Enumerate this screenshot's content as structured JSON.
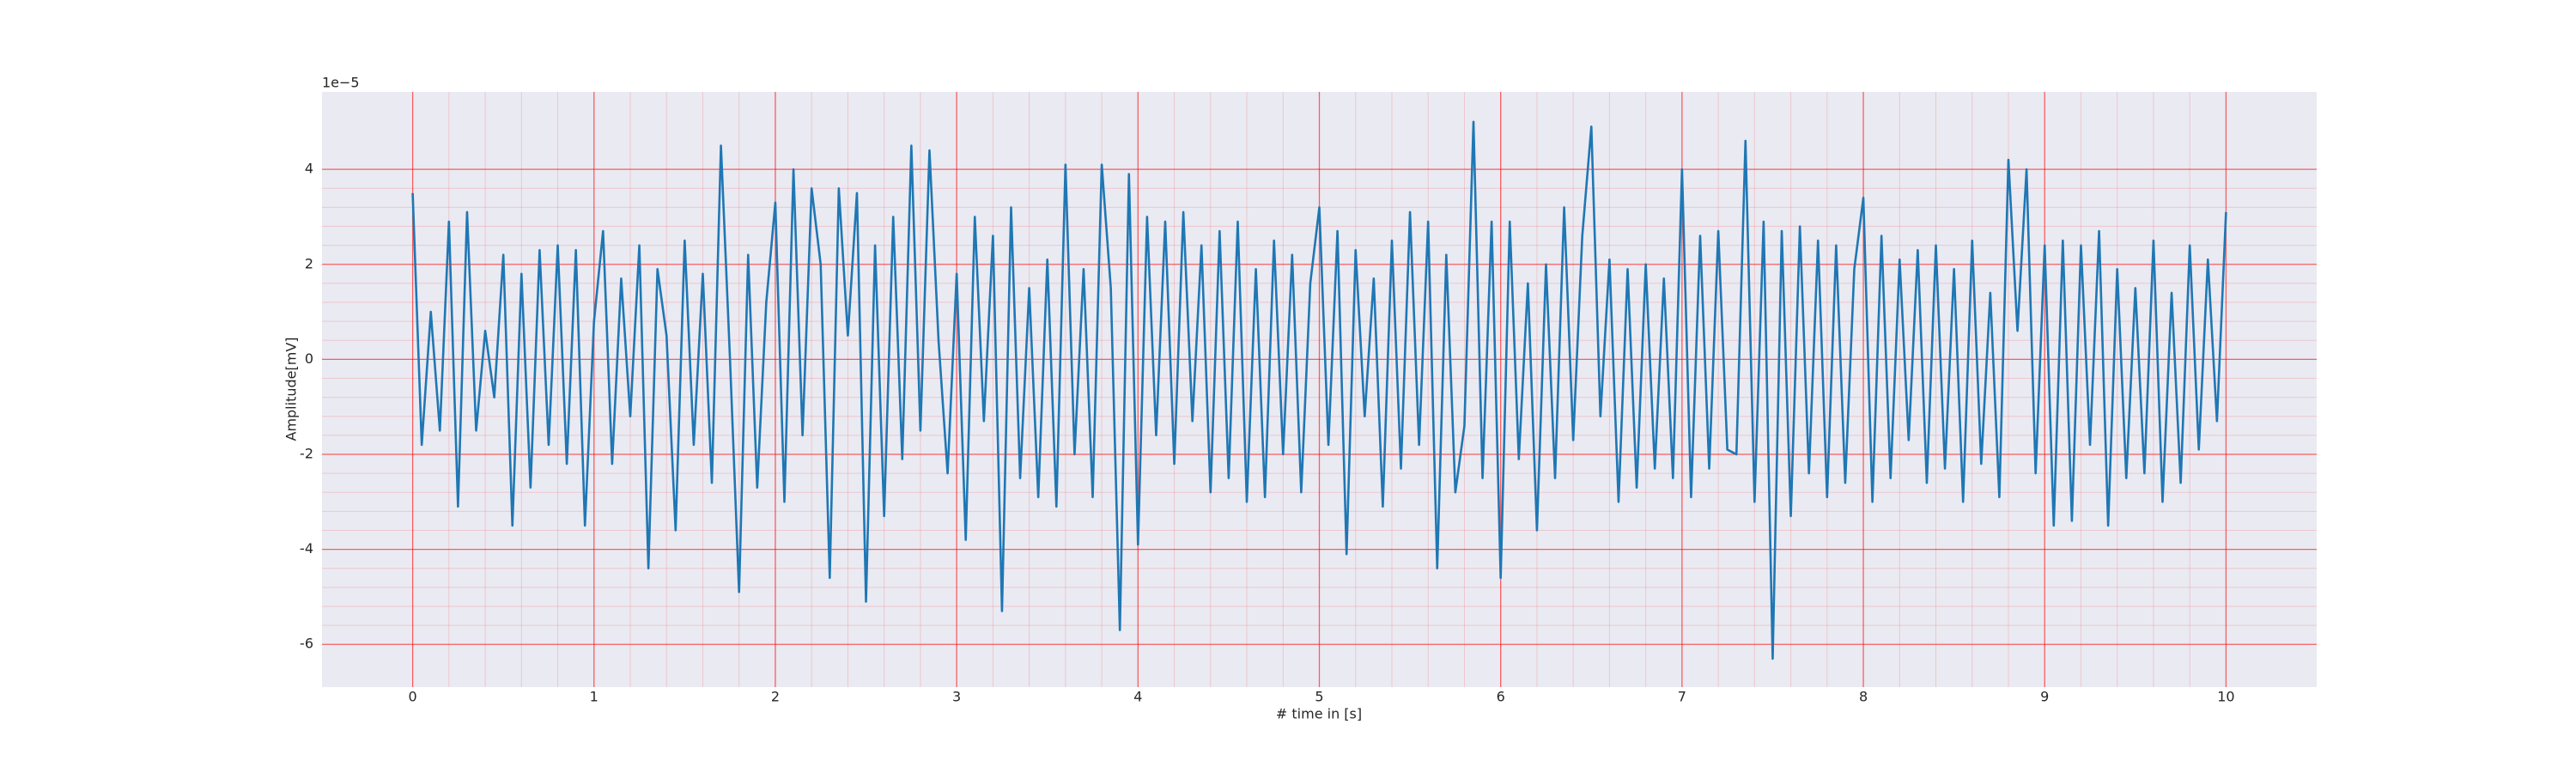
{
  "chart_data": {
    "type": "line",
    "xlabel": "# time in [s]",
    "ylabel": "Amplitude[mV]",
    "y_offset_label": "1e−5",
    "xlim": [
      -0.5,
      10.5
    ],
    "ylim": [
      -6.9,
      5.63
    ],
    "xticks": [
      0,
      1,
      2,
      3,
      4,
      5,
      6,
      7,
      8,
      9,
      10
    ],
    "yticks": [
      -6,
      -4,
      -2,
      0,
      2,
      4
    ],
    "grid": true,
    "minor_grid": true,
    "grid_color": "#ff0000",
    "background": "#eaeaf2",
    "x": [
      0,
      0.05,
      0.1,
      0.15,
      0.2,
      0.25,
      0.3,
      0.35,
      0.4,
      0.45,
      0.5,
      0.55,
      0.6,
      0.65,
      0.7,
      0.75,
      0.8,
      0.85,
      0.9,
      0.95,
      1,
      1.05,
      1.1,
      1.15,
      1.2,
      1.25,
      1.3,
      1.35,
      1.4,
      1.45,
      1.5,
      1.55,
      1.6,
      1.65,
      1.7,
      1.75,
      1.8,
      1.85,
      1.9,
      1.95,
      2,
      2.05,
      2.1,
      2.15,
      2.2,
      2.25,
      2.3,
      2.35,
      2.4,
      2.45,
      2.5,
      2.55,
      2.6,
      2.65,
      2.7,
      2.75,
      2.8,
      2.85,
      2.9,
      2.95,
      3,
      3.05,
      3.1,
      3.15,
      3.2,
      3.25,
      3.3,
      3.35,
      3.4,
      3.45,
      3.5,
      3.55,
      3.6,
      3.65,
      3.7,
      3.75,
      3.8,
      3.85,
      3.9,
      3.95,
      4,
      4.05,
      4.1,
      4.15,
      4.2,
      4.25,
      4.3,
      4.35,
      4.4,
      4.45,
      4.5,
      4.55,
      4.6,
      4.65,
      4.7,
      4.75,
      4.8,
      4.85,
      4.9,
      4.95,
      5,
      5.05,
      5.1,
      5.15,
      5.2,
      5.25,
      5.3,
      5.35,
      5.4,
      5.45,
      5.5,
      5.55,
      5.6,
      5.65,
      5.7,
      5.75,
      5.8,
      5.85,
      5.9,
      5.95,
      6,
      6.05,
      6.1,
      6.15,
      6.2,
      6.25,
      6.3,
      6.35,
      6.4,
      6.45,
      6.5,
      6.55,
      6.6,
      6.65,
      6.7,
      6.75,
      6.8,
      6.85,
      6.9,
      6.95,
      7,
      7.05,
      7.1,
      7.15,
      7.2,
      7.25,
      7.3,
      7.35,
      7.4,
      7.45,
      7.5,
      7.55,
      7.6,
      7.65,
      7.7,
      7.75,
      7.8,
      7.85,
      7.9,
      7.95,
      8,
      8.05,
      8.1,
      8.15,
      8.2,
      8.25,
      8.3,
      8.35,
      8.4,
      8.45,
      8.5,
      8.55,
      8.6,
      8.65,
      8.7,
      8.75,
      8.8,
      8.85,
      8.9,
      8.95,
      9,
      9.05,
      9.1,
      9.15,
      9.2,
      9.25,
      9.3,
      9.35,
      9.4,
      9.45,
      9.5,
      9.55,
      9.6,
      9.65,
      9.7,
      9.75,
      9.8,
      9.85,
      9.9,
      9.95,
      10
    ],
    "series": [
      {
        "color": "#1f77b4",
        "values": [
          3.5,
          -1.8,
          1.0,
          -1.5,
          2.9,
          -3.1,
          3.1,
          -1.5,
          0.6,
          -0.8,
          2.2,
          -3.5,
          1.8,
          -2.7,
          2.3,
          -1.8,
          2.4,
          -2.2,
          2.3,
          -3.5,
          0.8,
          2.7,
          -2.2,
          1.7,
          -1.2,
          2.4,
          -4.4,
          1.9,
          0.5,
          -3.6,
          2.5,
          -1.8,
          1.8,
          -2.6,
          4.5,
          0.0,
          -4.9,
          2.2,
          -2.7,
          1.2,
          3.3,
          -3.0,
          4.0,
          -1.6,
          3.6,
          2.0,
          -4.6,
          3.6,
          0.5,
          3.5,
          -5.1,
          2.4,
          -3.3,
          3.0,
          -2.1,
          4.5,
          -1.5,
          4.4,
          0.4,
          -2.4,
          1.8,
          -3.8,
          3.0,
          -1.3,
          2.6,
          -5.3,
          3.2,
          -2.5,
          1.5,
          -2.9,
          2.1,
          -3.1,
          4.1,
          -2.0,
          1.9,
          -2.9,
          4.1,
          1.5,
          -5.7,
          3.9,
          -3.9,
          3.0,
          -1.6,
          2.9,
          -2.2,
          3.1,
          -1.3,
          2.4,
          -2.8,
          2.7,
          -2.5,
          2.9,
          -3.0,
          1.9,
          -2.9,
          2.5,
          -2.0,
          2.2,
          -2.8,
          1.6,
          3.2,
          -1.8,
          2.7,
          -4.1,
          2.3,
          -1.2,
          1.7,
          -3.1,
          2.5,
          -2.3,
          3.1,
          -1.8,
          2.9,
          -4.4,
          2.2,
          -2.8,
          -1.4,
          5.0,
          -2.5,
          2.9,
          -4.6,
          2.9,
          -2.1,
          1.6,
          -3.6,
          2.0,
          -2.5,
          3.2,
          -1.7,
          2.6,
          4.9,
          -1.2,
          2.1,
          -3.0,
          1.9,
          -2.7,
          2.0,
          -2.3,
          1.7,
          -2.5,
          4.0,
          -2.9,
          2.6,
          -2.3,
          2.7,
          -1.9,
          -2.0,
          4.6,
          -3.0,
          2.9,
          -6.3,
          2.7,
          -3.3,
          2.8,
          -2.4,
          2.5,
          -2.9,
          2.4,
          -2.6,
          1.9,
          3.4,
          -3.0,
          2.6,
          -2.5,
          2.1,
          -1.7,
          2.3,
          -2.6,
          2.4,
          -2.3,
          1.9,
          -3.0,
          2.5,
          -2.2,
          1.4,
          -2.9,
          4.2,
          0.6,
          4.0,
          -2.4,
          2.4,
          -3.5,
          2.5,
          -3.4,
          2.4,
          -1.8,
          2.7,
          -3.5,
          1.9,
          -2.5,
          1.5,
          -2.4,
          2.5,
          -3.0,
          1.4,
          -2.6,
          2.4,
          -1.9,
          2.1,
          -1.3,
          3.1
        ]
      }
    ]
  }
}
